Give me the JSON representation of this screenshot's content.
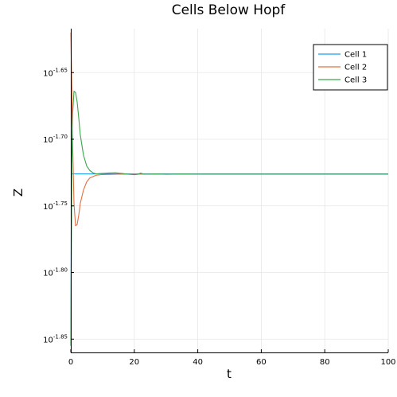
{
  "chart_data": {
    "type": "line",
    "title": "Cells Below Hopf",
    "xlabel": "t",
    "ylabel": "Z",
    "xlim": [
      0,
      100
    ],
    "ylim_exponent": [
      -1.86,
      -1.617
    ],
    "y_scale": "log10",
    "grid": true,
    "legend_position": "top-right",
    "x_ticks": [
      0,
      20,
      40,
      60,
      80,
      100
    ],
    "y_ticks": [
      {
        "base": "10",
        "exp": "-1.65",
        "value_exp": -1.65
      },
      {
        "base": "10",
        "exp": "-1.70",
        "value_exp": -1.7
      },
      {
        "base": "10",
        "exp": "-1.75",
        "value_exp": -1.75
      },
      {
        "base": "10",
        "exp": "-1.80",
        "value_exp": -1.8
      },
      {
        "base": "10",
        "exp": "-1.85",
        "value_exp": -1.85
      }
    ],
    "series": [
      {
        "name": "Cell 1",
        "color": "#1f9cf0",
        "points_log10": [
          [
            0,
            -1.855
          ],
          [
            0.2,
            -1.726
          ],
          [
            100,
            -1.726
          ]
        ]
      },
      {
        "name": "Cell 2",
        "color": "#e26f46",
        "points_log10": [
          [
            0,
            -1.62
          ],
          [
            0.3,
            -1.66
          ],
          [
            0.6,
            -1.705
          ],
          [
            1,
            -1.748
          ],
          [
            1.5,
            -1.765
          ],
          [
            2,
            -1.764
          ],
          [
            2.5,
            -1.757
          ],
          [
            3,
            -1.748
          ],
          [
            4,
            -1.738
          ],
          [
            5,
            -1.732
          ],
          [
            6,
            -1.729
          ],
          [
            8,
            -1.727
          ],
          [
            10,
            -1.7265
          ],
          [
            15,
            -1.7262
          ],
          [
            20,
            -1.7262
          ],
          [
            25,
            -1.7262
          ],
          [
            100,
            -1.7262
          ]
        ]
      },
      {
        "name": "Cell 3",
        "color": "#3da44d",
        "points_log10": [
          [
            0,
            -1.855
          ],
          [
            0.3,
            -1.72
          ],
          [
            0.6,
            -1.68
          ],
          [
            1,
            -1.664
          ],
          [
            1.5,
            -1.665
          ],
          [
            2,
            -1.672
          ],
          [
            2.5,
            -1.684
          ],
          [
            3,
            -1.697
          ],
          [
            4,
            -1.712
          ],
          [
            5,
            -1.72
          ],
          [
            6,
            -1.7235
          ],
          [
            7,
            -1.7252
          ],
          [
            8,
            -1.726
          ],
          [
            10,
            -1.7256
          ],
          [
            12,
            -1.7253
          ],
          [
            14,
            -1.7252
          ],
          [
            16,
            -1.7256
          ],
          [
            18,
            -1.7262
          ],
          [
            20,
            -1.7266
          ],
          [
            21,
            -1.7264
          ],
          [
            22,
            -1.7254
          ],
          [
            23,
            -1.7262
          ],
          [
            25,
            -1.7262
          ],
          [
            27,
            -1.726
          ],
          [
            30,
            -1.7263
          ],
          [
            35,
            -1.7261
          ],
          [
            40,
            -1.7262
          ],
          [
            50,
            -1.7262
          ],
          [
            60,
            -1.7262
          ],
          [
            100,
            -1.7262
          ]
        ]
      }
    ]
  }
}
